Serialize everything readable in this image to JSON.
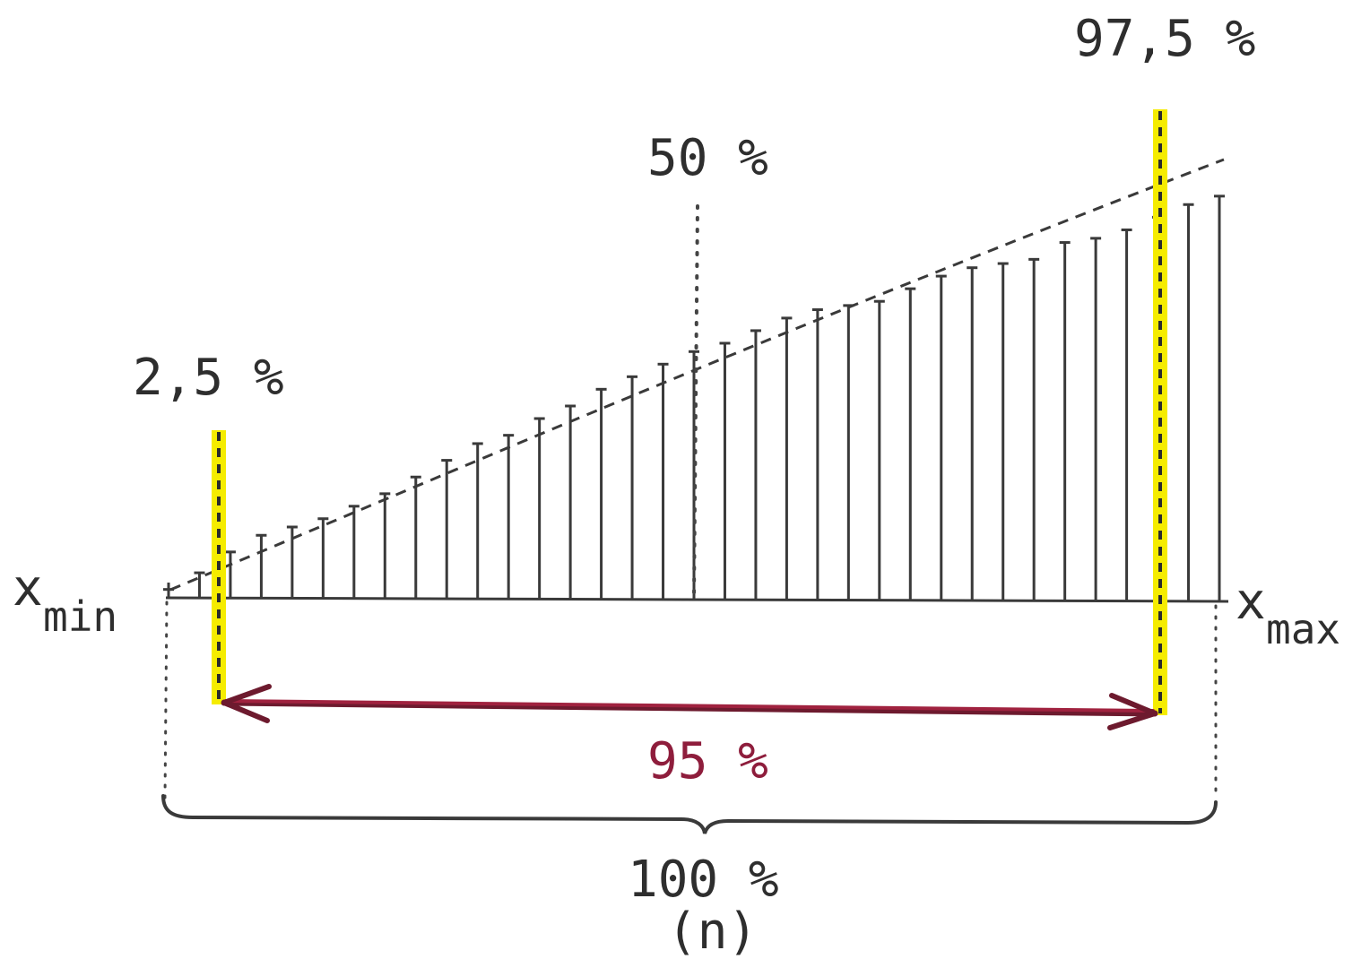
{
  "labels": {
    "p_low": "2,5 %",
    "p_mid": "50 %",
    "p_high": "97,5 %",
    "x_min_main": "x",
    "x_min_sub": "min",
    "x_max_main": "x",
    "x_max_sub": "max",
    "interval": "95 %",
    "total": "100 %",
    "total_n": "(n)"
  },
  "colors": {
    "ink": "#3a3a3a",
    "highlight": "#f5ec00",
    "arrow": "#a0223f",
    "arrow_shadow": "#6d1a2e"
  },
  "sample": {
    "bar_heights": [
      0.02,
      0.06,
      0.11,
      0.15,
      0.17,
      0.19,
      0.22,
      0.25,
      0.29,
      0.33,
      0.37,
      0.39,
      0.43,
      0.46,
      0.5,
      0.53,
      0.56,
      0.59,
      0.61,
      0.64,
      0.67,
      0.69,
      0.7,
      0.71,
      0.74,
      0.77,
      0.79,
      0.8,
      0.81,
      0.85,
      0.86,
      0.88,
      0.91,
      0.94,
      0.96
    ]
  }
}
